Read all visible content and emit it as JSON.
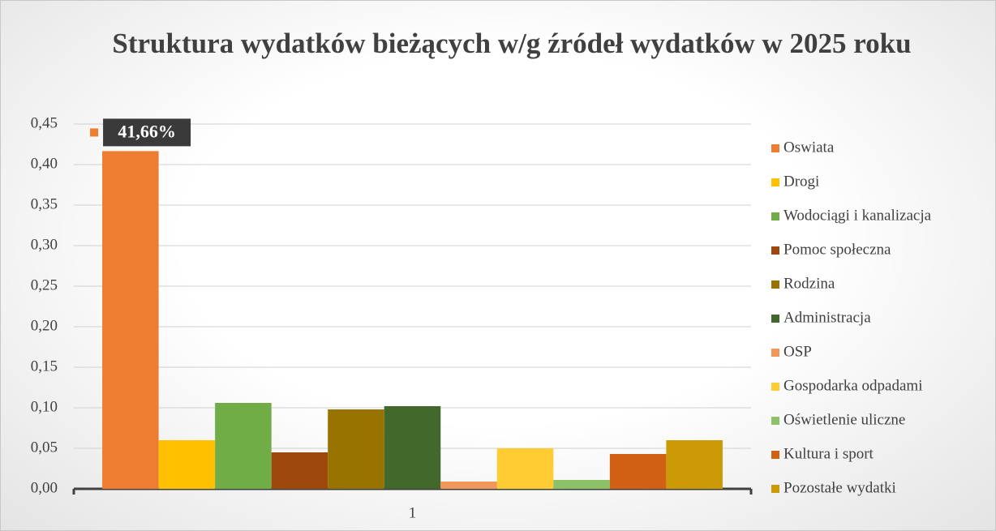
{
  "chart_data": {
    "type": "bar",
    "title": "Struktura wydatków bieżących w/g źródeł wydatków w 2025 roku",
    "categories": [
      "1"
    ],
    "series": [
      {
        "name": "Oswiata",
        "color": "#ED7D31",
        "values": [
          0.4166
        ],
        "value_labels": [
          "41,66%"
        ]
      },
      {
        "name": "Drogi",
        "color": "#FFC000",
        "values": [
          0.06
        ]
      },
      {
        "name": "Wodociągi i kanalizacja",
        "color": "#70AD47",
        "values": [
          0.106
        ]
      },
      {
        "name": "Pomoc społeczna",
        "color": "#9E480E",
        "values": [
          0.045
        ]
      },
      {
        "name": "Rodzina",
        "color": "#997300",
        "values": [
          0.098
        ]
      },
      {
        "name": "Administracja",
        "color": "#43682B",
        "values": [
          0.102
        ]
      },
      {
        "name": "OSP",
        "color": "#F1975A",
        "values": [
          0.009
        ]
      },
      {
        "name": "Gospodarka odpadami",
        "color": "#FFCD33",
        "values": [
          0.05
        ]
      },
      {
        "name": "Oświetlenie uliczne",
        "color": "#8CC168",
        "values": [
          0.011
        ]
      },
      {
        "name": "Kultura i sport",
        "color": "#D26012",
        "values": [
          0.043
        ]
      },
      {
        "name": "Pozostałe wydatki",
        "color": "#CC9A06",
        "values": [
          0.06
        ]
      }
    ],
    "ylim": [
      0,
      0.45
    ],
    "yticks": [
      {
        "value": 0,
        "label": "0,00"
      },
      {
        "value": 0.05,
        "label": "0,05"
      },
      {
        "value": 0.1,
        "label": "0,10"
      },
      {
        "value": 0.15,
        "label": "0,15"
      },
      {
        "value": 0.2,
        "label": "0,20"
      },
      {
        "value": 0.25,
        "label": "0,25"
      },
      {
        "value": 0.3,
        "label": "0,30"
      },
      {
        "value": 0.35,
        "label": "0,35"
      },
      {
        "value": 0.4,
        "label": "0,40"
      },
      {
        "value": 0.45,
        "label": "0,45"
      }
    ],
    "grid": true,
    "legend": "right"
  }
}
